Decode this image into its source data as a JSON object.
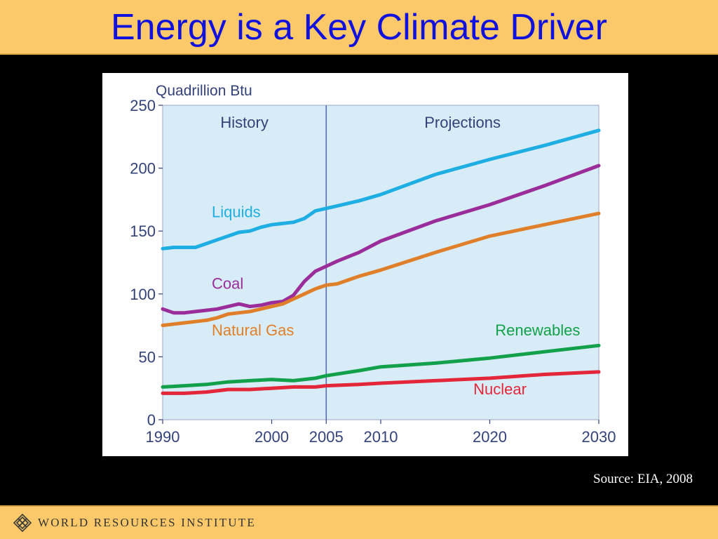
{
  "slide": {
    "title": "Energy is a Key Climate Driver",
    "source": "Source: EIA, 2008",
    "footer_org": "WORLD RESOURCES INSTITUTE",
    "logo_icon": "wri-lattice-icon"
  },
  "colors": {
    "title_bar": "#fbc969",
    "title_text": "#1111dd",
    "plot_bg": "#d8ecf7",
    "divider": "#5a6db3",
    "axis_text": "#33427a"
  },
  "chart_data": {
    "type": "line",
    "ylabel": "Quadrillion Btu",
    "xlim": [
      1990,
      2030
    ],
    "ylim": [
      0,
      250
    ],
    "x_ticks": [
      1990,
      2000,
      2005,
      2010,
      2020,
      2030
    ],
    "y_ticks": [
      0,
      50,
      100,
      150,
      200,
      250
    ],
    "grid": false,
    "legend": "inline labels",
    "regions": [
      {
        "label": "History",
        "from": 1990,
        "to": 2005
      },
      {
        "label": "Projections",
        "from": 2005,
        "to": 2030
      }
    ],
    "divider_x": 2005,
    "series": [
      {
        "name": "Liquids",
        "color": "#1eaee3",
        "label_at": {
          "x": 1994.5,
          "y": 161
        },
        "x": [
          1990,
          1991,
          1992,
          1993,
          1994,
          1995,
          1996,
          1997,
          1998,
          1999,
          2000,
          2001,
          2002,
          2003,
          2004,
          2005,
          2006,
          2008,
          2010,
          2015,
          2020,
          2025,
          2030
        ],
        "y": [
          136,
          137,
          137,
          137,
          140,
          143,
          146,
          149,
          150,
          153,
          155,
          156,
          157,
          160,
          166,
          168,
          170,
          174,
          179,
          195,
          207,
          218,
          230
        ]
      },
      {
        "name": "Coal",
        "color": "#9b2d9a",
        "label_at": {
          "x": 1994.5,
          "y": 104
        },
        "x": [
          1990,
          1991,
          1992,
          1993,
          1994,
          1995,
          1996,
          1997,
          1998,
          1999,
          2000,
          2001,
          2002,
          2003,
          2004,
          2005,
          2006,
          2008,
          2010,
          2015,
          2020,
          2025,
          2030
        ],
        "y": [
          88,
          85,
          85,
          86,
          87,
          88,
          90,
          92,
          90,
          91,
          93,
          94,
          99,
          110,
          118,
          122,
          126,
          133,
          142,
          158,
          171,
          186,
          202
        ]
      },
      {
        "name": "Natural Gas",
        "color": "#e07f2a",
        "label_at": {
          "x": 1994.5,
          "y": 67
        },
        "x": [
          1990,
          1991,
          1992,
          1993,
          1994,
          1995,
          1996,
          1997,
          1998,
          1999,
          2000,
          2001,
          2002,
          2003,
          2004,
          2005,
          2006,
          2008,
          2010,
          2015,
          2020,
          2025,
          2030
        ],
        "y": [
          75,
          76,
          77,
          78,
          79,
          81,
          84,
          85,
          86,
          88,
          90,
          92,
          96,
          100,
          104,
          107,
          108,
          114,
          119,
          133,
          146,
          155,
          164
        ]
      },
      {
        "name": "Renewables",
        "color": "#12a14a",
        "label_at": {
          "x": 2020.5,
          "y": 67
        },
        "x": [
          1990,
          1992,
          1994,
          1996,
          1998,
          2000,
          2002,
          2004,
          2005,
          2008,
          2010,
          2015,
          2020,
          2025,
          2030
        ],
        "y": [
          26,
          27,
          28,
          30,
          31,
          32,
          31,
          33,
          35,
          39,
          42,
          45,
          49,
          54,
          59
        ]
      },
      {
        "name": "Nuclear",
        "color": "#e3263a",
        "label_at": {
          "x": 2018.5,
          "y": 20
        },
        "x": [
          1990,
          1992,
          1994,
          1996,
          1998,
          2000,
          2002,
          2004,
          2005,
          2008,
          2010,
          2015,
          2020,
          2025,
          2030
        ],
        "y": [
          21,
          21,
          22,
          24,
          24,
          25,
          26,
          26,
          27,
          28,
          29,
          31,
          33,
          36,
          38
        ]
      }
    ]
  }
}
